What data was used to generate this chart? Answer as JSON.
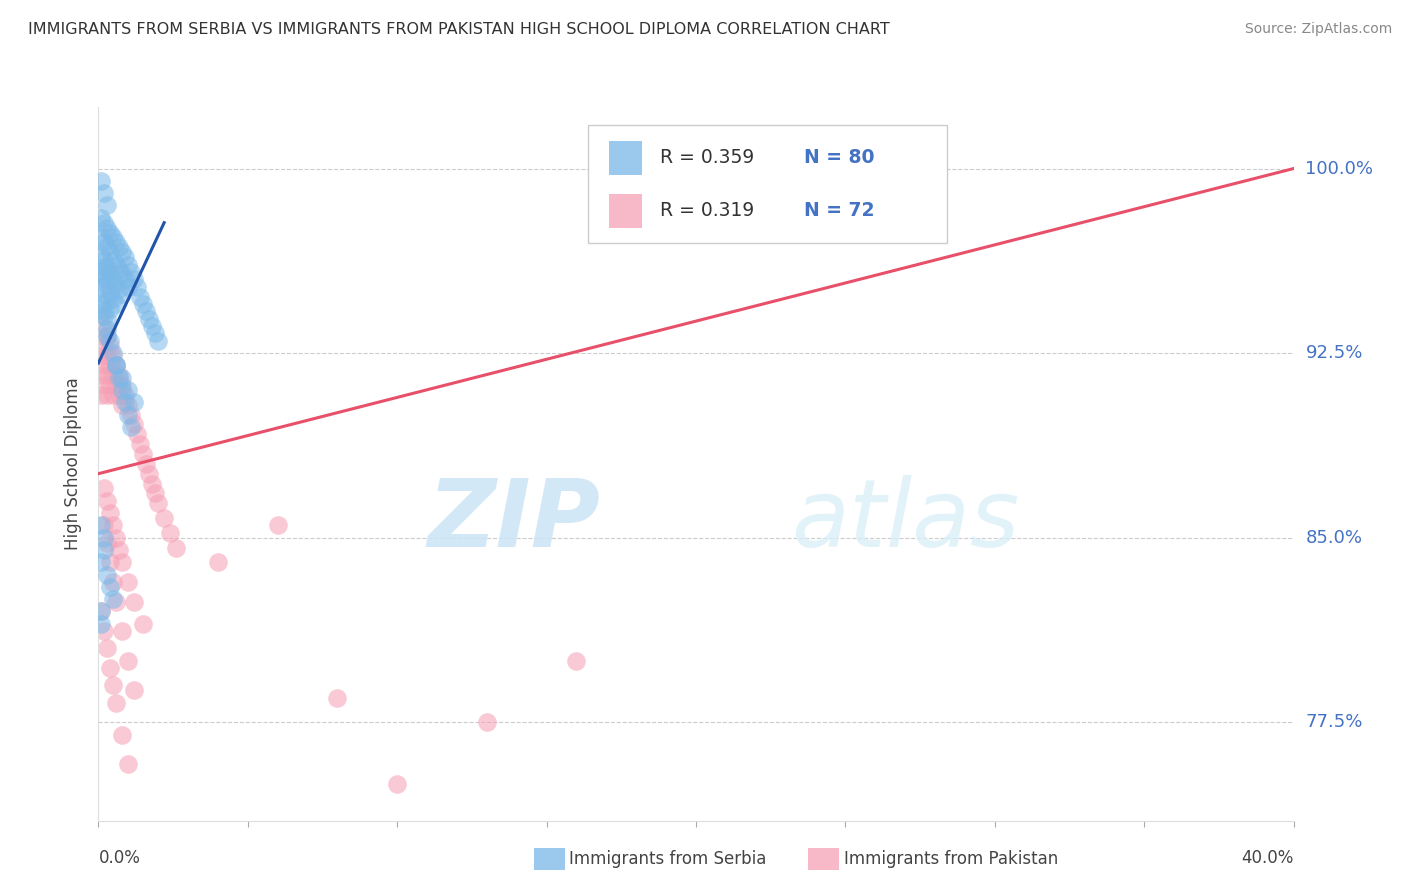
{
  "title": "IMMIGRANTS FROM SERBIA VS IMMIGRANTS FROM PAKISTAN HIGH SCHOOL DIPLOMA CORRELATION CHART",
  "source": "Source: ZipAtlas.com",
  "ylabel": "High School Diploma",
  "ytick_labels": [
    "100.0%",
    "92.5%",
    "85.0%",
    "77.5%"
  ],
  "ytick_values": [
    1.0,
    0.925,
    0.85,
    0.775
  ],
  "xlim": [
    0.0,
    0.4
  ],
  "ylim": [
    0.735,
    1.025
  ],
  "watermark_zip": "ZIP",
  "watermark_atlas": "atlas",
  "legend_r_serbia": "R = 0.359",
  "legend_n_serbia": "N = 80",
  "legend_r_pakistan": "R = 0.319",
  "legend_n_pakistan": "N = 72",
  "serbia_color": "#7ab8e8",
  "pakistan_color": "#f5a0b5",
  "serbia_line_color": "#2255aa",
  "pakistan_line_color": "#e8506a",
  "serbia_scatter_x": [
    0.001,
    0.001,
    0.001,
    0.001,
    0.001,
    0.001,
    0.002,
    0.002,
    0.002,
    0.002,
    0.002,
    0.002,
    0.003,
    0.003,
    0.003,
    0.003,
    0.003,
    0.003,
    0.003,
    0.004,
    0.004,
    0.004,
    0.004,
    0.004,
    0.005,
    0.005,
    0.005,
    0.005,
    0.006,
    0.006,
    0.006,
    0.006,
    0.007,
    0.007,
    0.007,
    0.008,
    0.008,
    0.008,
    0.009,
    0.009,
    0.01,
    0.01,
    0.011,
    0.012,
    0.013,
    0.014,
    0.015,
    0.016,
    0.017,
    0.018,
    0.019,
    0.02,
    0.002,
    0.003,
    0.004,
    0.005,
    0.006,
    0.007,
    0.008,
    0.009,
    0.01,
    0.011,
    0.001,
    0.002,
    0.003,
    0.001,
    0.002,
    0.002,
    0.001,
    0.003,
    0.004,
    0.005,
    0.001,
    0.001,
    0.006,
    0.008,
    0.01,
    0.012,
    0.002,
    0.003
  ],
  "serbia_scatter_y": [
    0.98,
    0.972,
    0.965,
    0.958,
    0.952,
    0.945,
    0.978,
    0.97,
    0.963,
    0.956,
    0.949,
    0.942,
    0.976,
    0.968,
    0.96,
    0.953,
    0.946,
    0.939,
    0.932,
    0.974,
    0.966,
    0.958,
    0.95,
    0.943,
    0.972,
    0.963,
    0.955,
    0.947,
    0.97,
    0.961,
    0.953,
    0.945,
    0.968,
    0.959,
    0.951,
    0.966,
    0.957,
    0.949,
    0.964,
    0.955,
    0.961,
    0.952,
    0.958,
    0.955,
    0.952,
    0.948,
    0.945,
    0.942,
    0.939,
    0.936,
    0.933,
    0.93,
    0.94,
    0.935,
    0.93,
    0.925,
    0.92,
    0.915,
    0.91,
    0.905,
    0.9,
    0.895,
    0.995,
    0.99,
    0.985,
    0.855,
    0.85,
    0.845,
    0.84,
    0.835,
    0.83,
    0.825,
    0.82,
    0.815,
    0.92,
    0.915,
    0.91,
    0.905,
    0.96,
    0.955
  ],
  "pakistan_scatter_x": [
    0.001,
    0.001,
    0.001,
    0.001,
    0.001,
    0.002,
    0.002,
    0.002,
    0.002,
    0.003,
    0.003,
    0.003,
    0.003,
    0.004,
    0.004,
    0.004,
    0.005,
    0.005,
    0.005,
    0.006,
    0.006,
    0.007,
    0.007,
    0.008,
    0.008,
    0.009,
    0.01,
    0.011,
    0.012,
    0.013,
    0.014,
    0.015,
    0.016,
    0.017,
    0.018,
    0.019,
    0.02,
    0.022,
    0.024,
    0.026,
    0.002,
    0.003,
    0.004,
    0.005,
    0.006,
    0.007,
    0.008,
    0.01,
    0.012,
    0.015,
    0.002,
    0.003,
    0.004,
    0.005,
    0.006,
    0.008,
    0.01,
    0.012,
    0.001,
    0.002,
    0.003,
    0.004,
    0.005,
    0.006,
    0.008,
    0.01,
    0.04,
    0.06,
    0.08,
    0.1,
    0.13,
    0.16
  ],
  "pakistan_scatter_y": [
    0.94,
    0.932,
    0.924,
    0.916,
    0.908,
    0.935,
    0.928,
    0.92,
    0.912,
    0.932,
    0.924,
    0.916,
    0.908,
    0.928,
    0.92,
    0.912,
    0.924,
    0.916,
    0.908,
    0.92,
    0.912,
    0.916,
    0.908,
    0.912,
    0.904,
    0.908,
    0.904,
    0.9,
    0.896,
    0.892,
    0.888,
    0.884,
    0.88,
    0.876,
    0.872,
    0.868,
    0.864,
    0.858,
    0.852,
    0.846,
    0.87,
    0.865,
    0.86,
    0.855,
    0.85,
    0.845,
    0.84,
    0.832,
    0.824,
    0.815,
    0.855,
    0.848,
    0.84,
    0.832,
    0.824,
    0.812,
    0.8,
    0.788,
    0.82,
    0.812,
    0.805,
    0.797,
    0.79,
    0.783,
    0.77,
    0.758,
    0.84,
    0.855,
    0.785,
    0.75,
    0.775,
    0.8
  ],
  "serbia_line_x": [
    0.0,
    0.022
  ],
  "serbia_line_y": [
    0.921,
    0.978
  ],
  "pakistan_line_x": [
    0.0,
    0.4
  ],
  "pakistan_line_y": [
    0.876,
    1.0
  ],
  "bottom_legend_serbia": "Immigrants from Serbia",
  "bottom_legend_pakistan": "Immigrants from Pakistan"
}
